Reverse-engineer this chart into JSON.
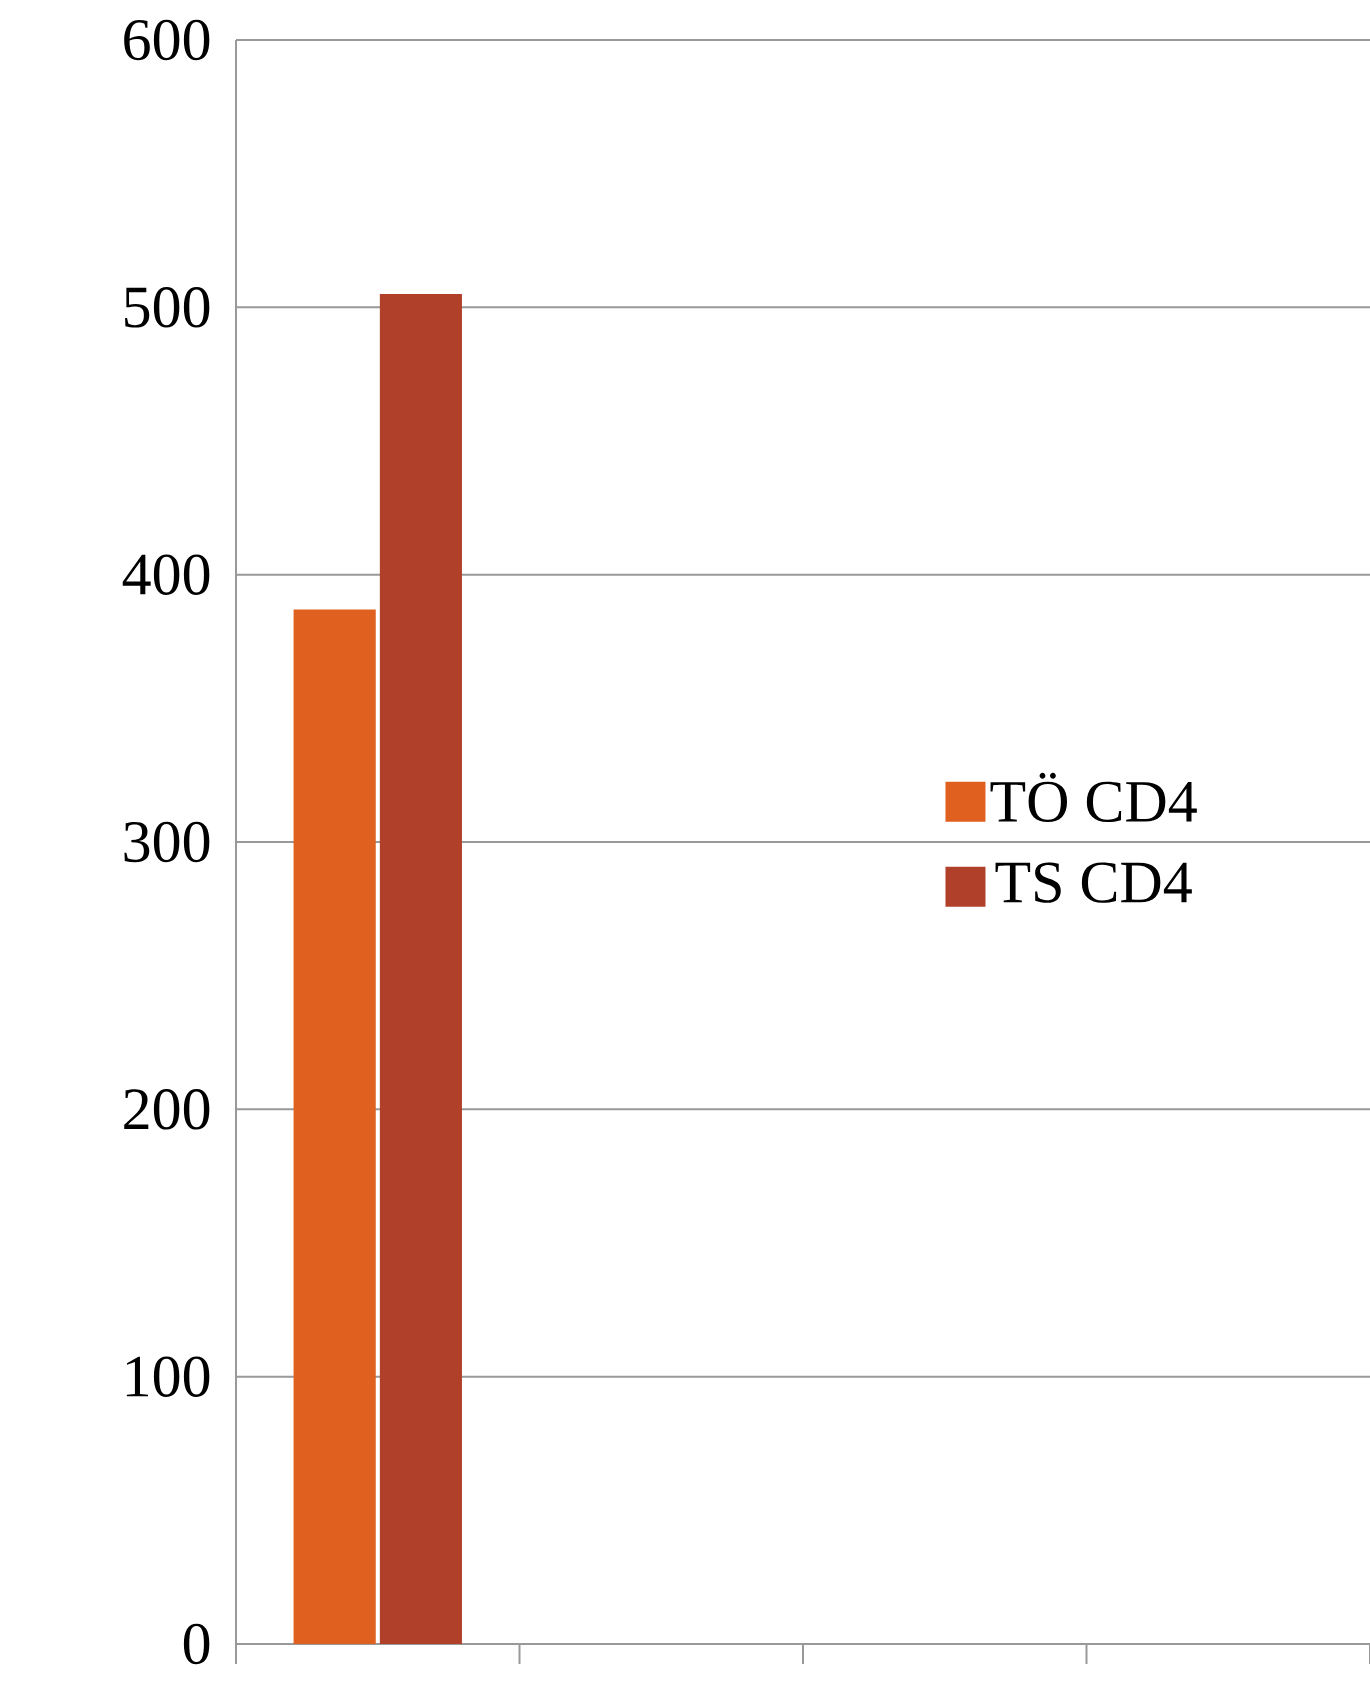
{
  "chart_data": {
    "type": "bar",
    "categories": [
      null,
      null,
      null,
      null
    ],
    "series": [
      {
        "name": "TÖ CD4",
        "color": "#e0601f",
        "values": [
          387,
          null,
          null,
          null
        ]
      },
      {
        "name": "TS CD4",
        "color": "#b0402a",
        "values": [
          505,
          null,
          null,
          null
        ]
      }
    ],
    "ylim": [
      0,
      600
    ],
    "yticks": [
      0,
      100,
      200,
      300,
      400,
      500,
      600
    ],
    "grid": "y",
    "legend": "right",
    "tick_labels": "y"
  }
}
